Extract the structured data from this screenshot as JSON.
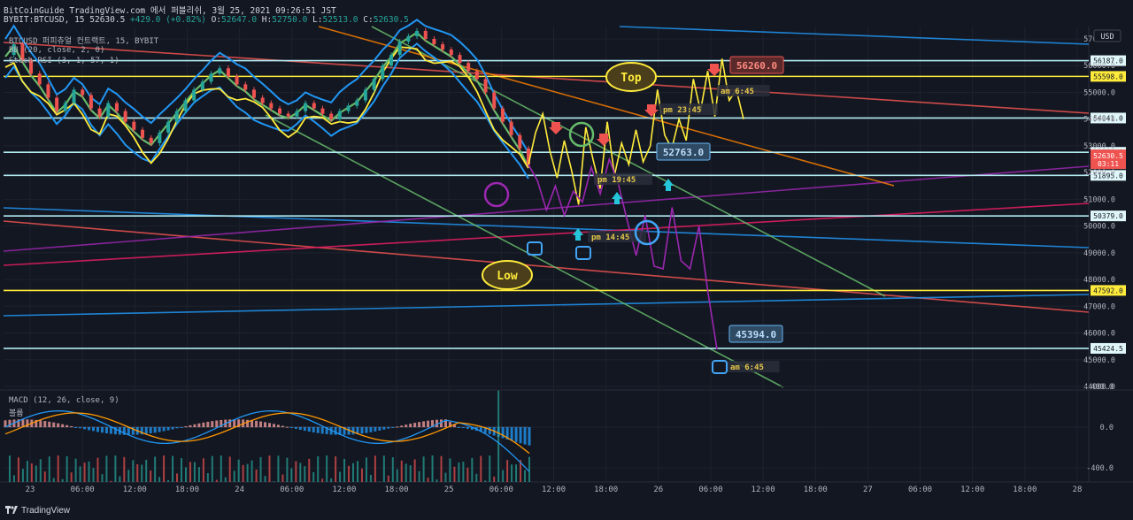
{
  "header": {
    "line1": "BitCoinGuide TradingView.com 에서 퍼블리쉬, 3월 25, 2021 09:26:51 JST",
    "symbol": "BYBIT:BTCUSD, 15",
    "price": "52630.5",
    "change": "+429.0 (+0.82%)",
    "o_label": "O:",
    "o": "52647.0",
    "h_label": "H:",
    "h": "52750.0",
    "l_label": "L:",
    "l": "52513.0",
    "c_label": "C:",
    "c": "52630.5"
  },
  "overlays": {
    "title": "BTCUSD 퍼피츄얼 컨트랙트, 15, BYBIT",
    "bb": "BB (20, close, 2, 0)",
    "stoch": "Stoch RSI (3, 1, 57, 1)",
    "macd": "MACD (12, 26, close, 9)",
    "macd_sub": "볼륨"
  },
  "footer": {
    "brand": "TradingView"
  },
  "currency_label": "USD",
  "colors": {
    "background": "#131722",
    "up": "#26a69a",
    "down": "#ef5350",
    "bb": "#2196f3",
    "ma": "#66bb6a",
    "yellow": "#ffeb3b",
    "purple": "#9c27b0",
    "level": "#b2ebf2"
  },
  "chart_data": [
    {
      "type": "line",
      "name": "price",
      "y_axis_ticks": [
        57000,
        56000,
        55000,
        54000,
        53000,
        52000,
        51000,
        50000,
        49000,
        48000,
        47000,
        46000,
        45000,
        44000
      ],
      "ylim": [
        44000,
        58000
      ],
      "x_axis_ticks": [
        "23",
        "06:00",
        "12:00",
        "18:00",
        "24",
        "06:00",
        "12:00",
        "18:00",
        "25",
        "06:00",
        "12:00",
        "18:00",
        "26",
        "06:00",
        "12:00",
        "18:00",
        "27",
        "06:00",
        "12:00",
        "18:00",
        "28"
      ],
      "last_price": "52630.5",
      "countdown": "03:11",
      "horizontal_levels": [
        56187.0,
        55598.0,
        54041.0,
        52759.0,
        51895.0,
        50379.0,
        47592.0,
        45424.5
      ],
      "annotations": [
        {
          "text": "Top",
          "kind": "bubble"
        },
        {
          "text": "Low",
          "kind": "bubble"
        },
        {
          "text": "56260.0",
          "kind": "price-box"
        },
        {
          "text": "45394.0",
          "kind": "price-box"
        },
        {
          "text": "52763.0",
          "kind": "price-box"
        },
        {
          "text": "am 6:45",
          "kind": "label"
        },
        {
          "text": "pm 23:45",
          "kind": "label"
        },
        {
          "text": "pm 19:45",
          "kind": "label"
        },
        {
          "text": "pm 14:45",
          "kind": "label"
        },
        {
          "text": "am 6:45",
          "kind": "label"
        }
      ],
      "price_series": [
        56400,
        56800,
        56200,
        55700,
        55300,
        54800,
        54300,
        54600,
        55100,
        54900,
        54400,
        54100,
        54600,
        54300,
        53900,
        53600,
        53300,
        53100,
        53500,
        53900,
        54300,
        54700,
        55100,
        55400,
        55700,
        55900,
        55600,
        55300,
        55100,
        54800,
        54600,
        54400,
        54200,
        54100,
        54300,
        54600,
        54400,
        54200,
        54000,
        54300,
        54500,
        54700,
        55100,
        55500,
        56000,
        56400,
        56900,
        57100,
        57300,
        57000,
        56800,
        56600,
        56400,
        56100,
        55800,
        55500,
        55000,
        54400,
        53900,
        53400,
        52900,
        52300
      ]
    },
    {
      "type": "bar",
      "name": "MACD",
      "y_axis_ticks": [
        400.0,
        0.0,
        -400.0,
        -800.0
      ],
      "ylim": [
        -950,
        550
      ]
    }
  ]
}
